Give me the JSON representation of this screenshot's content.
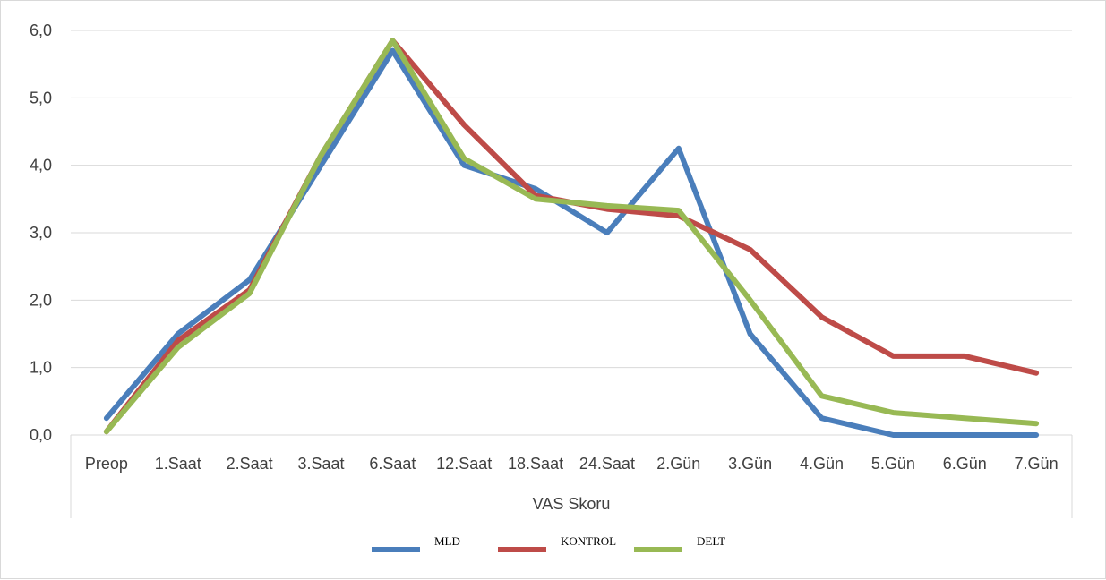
{
  "chart_data": {
    "type": "line",
    "title": "",
    "xlabel": "VAS Skoru",
    "ylabel": "",
    "ylim": [
      0,
      6
    ],
    "y_ticks": [
      "0,0",
      "1,0",
      "2,0",
      "3,0",
      "4,0",
      "5,0",
      "6,0"
    ],
    "y_tick_values": [
      0,
      1,
      2,
      3,
      4,
      5,
      6
    ],
    "grid": true,
    "legend_position": "bottom",
    "categories": [
      "Preop",
      "1.Saat",
      "2.Saat",
      "3.Saat",
      "6.Saat",
      "12.Saat",
      "18.Saat",
      "24.Saat",
      "2.Gün",
      "3.Gün",
      "4.Gün",
      "5.Gün",
      "6.Gün",
      "7.Gün"
    ],
    "series": [
      {
        "name": "MLD",
        "color": "#4a7ebb",
        "values": [
          0.25,
          1.5,
          2.3,
          4.0,
          5.7,
          4.0,
          3.65,
          3.0,
          4.25,
          1.5,
          0.25,
          0.0,
          0.0,
          0.0
        ]
      },
      {
        "name": "KONTROL",
        "color": "#be4b48",
        "values": [
          0.05,
          1.4,
          2.15,
          4.15,
          5.85,
          4.6,
          3.55,
          3.35,
          3.25,
          2.75,
          1.75,
          1.17,
          1.17,
          0.92
        ]
      },
      {
        "name": "DELT",
        "color": "#98b954",
        "values": [
          0.05,
          1.3,
          2.1,
          4.15,
          5.85,
          4.1,
          3.5,
          3.4,
          3.33,
          2.0,
          0.58,
          0.33,
          0.25,
          0.17
        ]
      }
    ]
  }
}
